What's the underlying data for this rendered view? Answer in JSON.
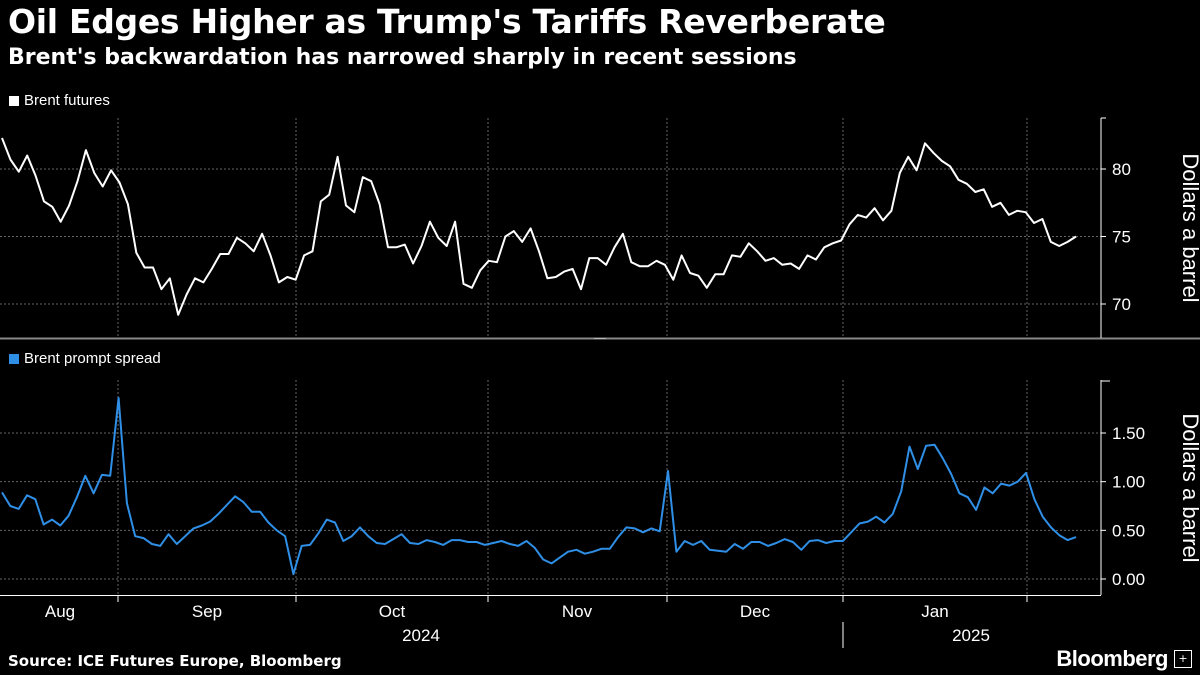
{
  "title": "Oil Edges Higher as Trump's Tariffs Reverberate",
  "subtitle": "Brent's backwardation has narrowed sharply in recent sessions",
  "source": "Source: ICE Futures Europe, Bloomberg",
  "brand": "Bloomberg",
  "colors": {
    "background": "#000000",
    "brent_futures": "#ffffff",
    "prompt_spread": "#2f8fe6",
    "grid": "#555555"
  },
  "chart_data": [
    {
      "type": "line",
      "legend": "Brent futures",
      "ylabel": "Dollars a barrel",
      "ylim": [
        68,
        83.5
      ],
      "yticks": [
        70,
        75,
        80
      ],
      "grid": true,
      "legend_position": "top-left",
      "series": [
        {
          "name": "Brent futures",
          "values": [
            82.3,
            80.7,
            79.8,
            81.0,
            79.5,
            77.6,
            77.2,
            76.1,
            77.3,
            79.1,
            81.4,
            79.7,
            78.7,
            79.9,
            79.0,
            77.4,
            73.8,
            72.7,
            72.7,
            71.1,
            71.9,
            69.2,
            70.7,
            71.9,
            71.6,
            72.6,
            73.7,
            73.7,
            74.9,
            74.5,
            73.9,
            75.2,
            73.6,
            71.6,
            72.0,
            71.8,
            73.6,
            73.9,
            77.6,
            78.1,
            80.9,
            77.3,
            76.8,
            79.4,
            79.1,
            77.4,
            74.2,
            74.2,
            74.4,
            73.0,
            74.3,
            76.1,
            74.9,
            74.3,
            76.1,
            71.5,
            71.2,
            72.5,
            73.2,
            73.1,
            75.0,
            75.4,
            74.6,
            75.6,
            73.9,
            71.9,
            72.0,
            72.4,
            72.6,
            71.1,
            73.4,
            73.4,
            72.9,
            74.2,
            75.2,
            73.1,
            72.8,
            72.8,
            73.2,
            72.9,
            71.8,
            73.6,
            72.3,
            72.1,
            71.2,
            72.2,
            72.2,
            73.6,
            73.5,
            74.5,
            73.9,
            73.2,
            73.4,
            72.9,
            73.0,
            72.6,
            73.6,
            73.3,
            74.2,
            74.5,
            74.7,
            75.9,
            76.6,
            76.4,
            77.1,
            76.2,
            76.9,
            79.7,
            80.9,
            79.9,
            81.9,
            81.2,
            80.6,
            80.2,
            79.2,
            78.9,
            78.3,
            78.5,
            77.2,
            77.5,
            76.6,
            76.9,
            76.8,
            76.0,
            76.3,
            74.6,
            74.3,
            74.6,
            75.0
          ]
        }
      ]
    },
    {
      "type": "line",
      "legend": "Brent prompt spread",
      "ylabel": "Dollars a barrel",
      "ylim": [
        -0.1,
        2.0
      ],
      "yticks": [
        "0.00",
        "0.50",
        "1.00",
        "1.50"
      ],
      "ytick_values": [
        0,
        0.5,
        1.0,
        1.5
      ],
      "grid": true,
      "legend_position": "top-left",
      "series": [
        {
          "name": "Brent prompt spread",
          "values": [
            0.89,
            0.75,
            0.72,
            0.86,
            0.82,
            0.56,
            0.61,
            0.55,
            0.65,
            0.84,
            1.06,
            0.88,
            1.07,
            1.06,
            1.86,
            0.78,
            0.44,
            0.42,
            0.36,
            0.34,
            0.46,
            0.36,
            0.44,
            0.52,
            0.55,
            0.59,
            0.67,
            0.76,
            0.85,
            0.79,
            0.69,
            0.69,
            0.58,
            0.5,
            0.44,
            0.05,
            0.34,
            0.35,
            0.47,
            0.61,
            0.58,
            0.39,
            0.44,
            0.53,
            0.44,
            0.37,
            0.36,
            0.41,
            0.46,
            0.37,
            0.36,
            0.4,
            0.38,
            0.35,
            0.4,
            0.4,
            0.38,
            0.38,
            0.35,
            0.37,
            0.39,
            0.36,
            0.34,
            0.39,
            0.32,
            0.2,
            0.16,
            0.22,
            0.28,
            0.3,
            0.26,
            0.28,
            0.31,
            0.31,
            0.43,
            0.53,
            0.52,
            0.48,
            0.52,
            0.49,
            1.11,
            0.28,
            0.39,
            0.35,
            0.39,
            0.3,
            0.29,
            0.28,
            0.36,
            0.31,
            0.38,
            0.38,
            0.34,
            0.37,
            0.41,
            0.38,
            0.3,
            0.39,
            0.4,
            0.37,
            0.39,
            0.39,
            0.48,
            0.57,
            0.59,
            0.64,
            0.58,
            0.67,
            0.9,
            1.36,
            1.13,
            1.37,
            1.38,
            1.24,
            1.08,
            0.88,
            0.84,
            0.71,
            0.94,
            0.88,
            0.98,
            0.96,
            1.0,
            1.09,
            0.82,
            0.64,
            0.53,
            0.45,
            0.4,
            0.43
          ]
        }
      ]
    }
  ],
  "x_axis": {
    "months": [
      "Aug",
      "Sep",
      "Oct",
      "Nov",
      "Dec",
      "Jan"
    ],
    "years": [
      "2024",
      "2025"
    ]
  }
}
